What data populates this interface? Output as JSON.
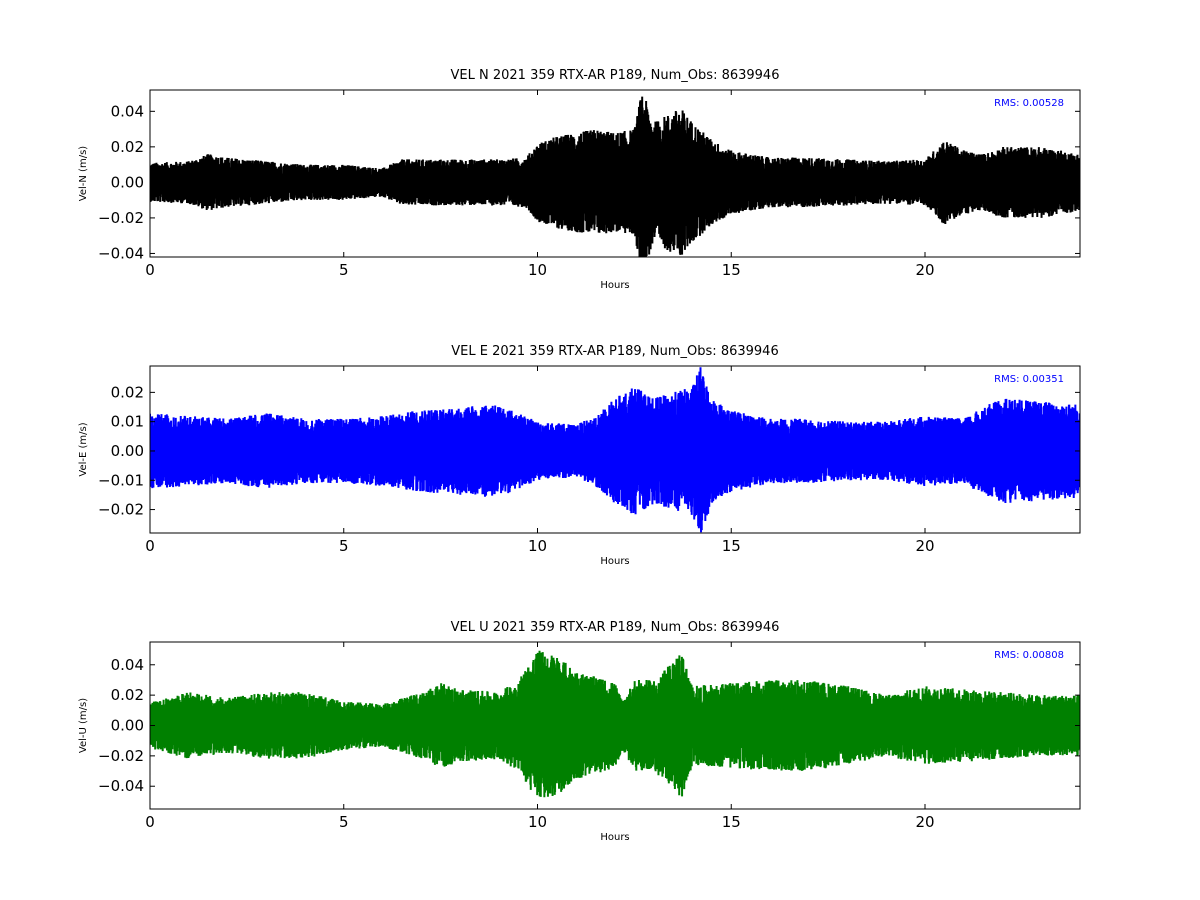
{
  "chart_data": [
    {
      "type": "line",
      "title": "VEL N 2021 359 RTX-AR  P189, Num_Obs: 8639946",
      "xlabel": "Hours",
      "ylabel": "Vel-N (m/s)",
      "xlim": [
        0,
        24
      ],
      "ylim": [
        -0.042,
        0.052
      ],
      "xticks": [
        0,
        5,
        10,
        15,
        20
      ],
      "xtick_labels": [
        "0",
        "5",
        "10",
        "15",
        "20"
      ],
      "yticks": [
        -0.04,
        -0.02,
        0.0,
        0.02,
        0.04
      ],
      "ytick_labels": [
        "−0.04",
        "−0.02",
        "0.00",
        "0.02",
        "0.04"
      ],
      "annotation": "RMS:  0.00528",
      "annotation_color": "#0000ff",
      "line_color": "#000000",
      "grid": false,
      "envelope": {
        "x": [
          0,
          1,
          1.5,
          2,
          3,
          4,
          5,
          6,
          6.5,
          7,
          8,
          9,
          9.7,
          10,
          10.5,
          11,
          11.5,
          12,
          12.5,
          12.7,
          13,
          13.5,
          13.7,
          14,
          14.5,
          15,
          16,
          17,
          18,
          19,
          20,
          20.5,
          21,
          21.5,
          22,
          23,
          24
        ],
        "y": [
          0.011,
          0.012,
          0.016,
          0.014,
          0.012,
          0.01,
          0.01,
          0.008,
          0.013,
          0.013,
          0.013,
          0.013,
          0.014,
          0.022,
          0.026,
          0.028,
          0.03,
          0.028,
          0.03,
          0.052,
          0.034,
          0.04,
          0.042,
          0.034,
          0.024,
          0.018,
          0.014,
          0.014,
          0.013,
          0.012,
          0.013,
          0.024,
          0.018,
          0.016,
          0.02,
          0.02,
          0.016
        ]
      }
    },
    {
      "type": "line",
      "title": "VEL E 2021 359 RTX-AR  P189, Num_Obs: 8639946",
      "xlabel": "Hours",
      "ylabel": "Vel-E (m/s)",
      "xlim": [
        0,
        24
      ],
      "ylim": [
        -0.028,
        0.029
      ],
      "xticks": [
        0,
        5,
        10,
        15,
        20
      ],
      "xtick_labels": [
        "0",
        "5",
        "10",
        "15",
        "20"
      ],
      "yticks": [
        -0.02,
        -0.01,
        0.0,
        0.01,
        0.02
      ],
      "ytick_labels": [
        "−0.02",
        "−0.01",
        "0.00",
        "0.01",
        "0.02"
      ],
      "annotation": "RMS:  0.00351",
      "annotation_color": "#0000ff",
      "line_color": "#0000ff",
      "grid": false,
      "envelope": {
        "x": [
          0,
          1,
          2,
          3,
          4,
          5,
          6,
          7,
          8,
          9,
          10,
          11,
          11.5,
          12,
          12.5,
          13,
          13.5,
          14,
          14.2,
          14.5,
          15,
          16,
          17,
          18,
          19,
          20,
          21,
          21.5,
          22,
          23,
          24
        ],
        "y": [
          0.013,
          0.012,
          0.011,
          0.013,
          0.011,
          0.011,
          0.012,
          0.014,
          0.015,
          0.016,
          0.01,
          0.009,
          0.012,
          0.018,
          0.022,
          0.018,
          0.02,
          0.022,
          0.029,
          0.018,
          0.014,
          0.011,
          0.011,
          0.01,
          0.01,
          0.012,
          0.011,
          0.015,
          0.018,
          0.017,
          0.016
        ]
      }
    },
    {
      "type": "line",
      "title": "VEL U 2021 359 RTX-AR  P189, Num_Obs: 8639946",
      "xlabel": "Hours",
      "ylabel": "Vel-U (m/s)",
      "xlim": [
        0,
        24
      ],
      "ylim": [
        -0.055,
        0.055
      ],
      "xticks": [
        0,
        5,
        10,
        15,
        20
      ],
      "xtick_labels": [
        "0",
        "5",
        "10",
        "15",
        "20"
      ],
      "yticks": [
        -0.04,
        -0.02,
        0.0,
        0.02,
        0.04
      ],
      "ytick_labels": [
        "−0.04",
        "−0.02",
        "0.00",
        "0.02",
        "0.04"
      ],
      "annotation": "RMS:  0.00808",
      "annotation_color": "#0000ff",
      "line_color": "#008000",
      "grid": false,
      "envelope": {
        "x": [
          0,
          1,
          2,
          3,
          4,
          5,
          6,
          7,
          7.5,
          8,
          9,
          9.5,
          10,
          10.5,
          11,
          12,
          12.2,
          12.5,
          13,
          13.5,
          13.7,
          14,
          15,
          16,
          17,
          18,
          19,
          20,
          21,
          22,
          23,
          24
        ],
        "y": [
          0.015,
          0.022,
          0.018,
          0.022,
          0.022,
          0.016,
          0.014,
          0.022,
          0.028,
          0.024,
          0.022,
          0.03,
          0.05,
          0.046,
          0.036,
          0.028,
          0.016,
          0.03,
          0.03,
          0.042,
          0.05,
          0.026,
          0.028,
          0.03,
          0.03,
          0.026,
          0.02,
          0.026,
          0.024,
          0.022,
          0.02,
          0.02
        ]
      }
    }
  ]
}
